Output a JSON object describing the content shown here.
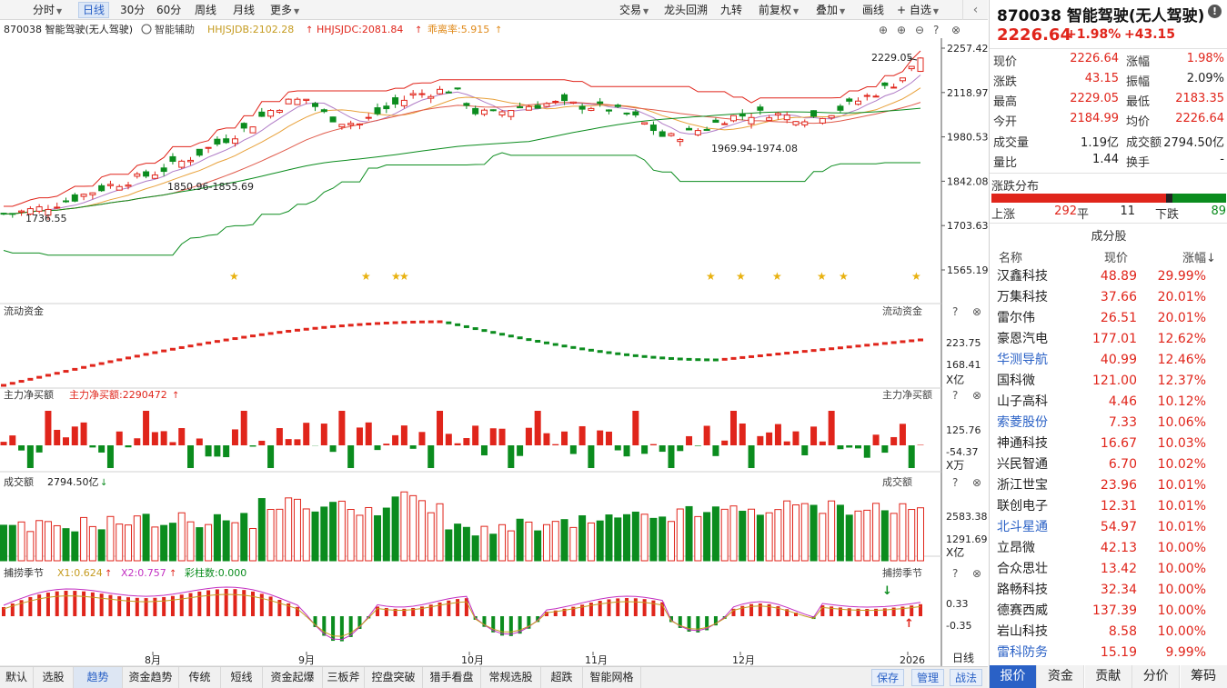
{
  "toolbar": {
    "left_tabs": [
      {
        "label": "分时",
        "caret": true
      },
      {
        "label": "日线",
        "active": true
      },
      {
        "label": "30分"
      },
      {
        "label": "60分"
      },
      {
        "label": "周线"
      },
      {
        "label": "月线"
      },
      {
        "label": "更多",
        "caret": true
      }
    ],
    "right_tabs": [
      {
        "label": "交易",
        "caret": true
      },
      {
        "label": "龙头回溯"
      },
      {
        "label": "九转"
      },
      {
        "label": "前复权",
        "caret": true
      },
      {
        "label": "叠加",
        "caret": true
      },
      {
        "label": "画线"
      },
      {
        "label": "+ 自选",
        "caret": true
      }
    ]
  },
  "main_chart": {
    "title": "870038 智能驾驶(无人驾驶)",
    "assist": "智能辅助",
    "ind1": "HHJSJDB:2102.28",
    "ind2": "HHJSJDC:2081.84",
    "ind3": "乖离率:5.915",
    "price_axis": [
      "2257.42",
      "2118.97",
      "1980.53",
      "1842.08",
      "1703.63",
      "1565.19"
    ],
    "annotations": {
      "high": "2229.05",
      "low1": "1736.55",
      "low2": "1850.96-1855.69",
      "low3": "1969.94-1974.08"
    }
  },
  "panel_flow": {
    "title": "流动资金",
    "right_title": "流动资金",
    "axis": [
      "223.75",
      "168.41"
    ],
    "unit": "X亿"
  },
  "panel_net": {
    "title": "主力净买额",
    "value": "主力净买额:2290472",
    "right_title": "主力净买额",
    "axis": [
      "125.76",
      "-54.37"
    ],
    "unit": "X万"
  },
  "panel_vol": {
    "title": "成交额",
    "value": "2794.50亿",
    "right_title": "成交额",
    "axis": [
      "2583.38",
      "1291.69"
    ],
    "unit": "X亿"
  },
  "panel_season": {
    "title": "捕捞季节",
    "x1": "X1:0.624",
    "x2": "X2:0.757",
    "cnt": "彩柱数:0.000",
    "right_title": "捕捞季节",
    "axis": [
      "0.33",
      "-0.35"
    ]
  },
  "x_axis": {
    "labels": [
      "8月",
      "9月",
      "10月",
      "11月",
      "12月",
      "2026"
    ],
    "period": "日线"
  },
  "bottom_tabs": [
    "默认",
    "选股",
    "趋势",
    "资金趋势",
    "传统",
    "短线",
    "资金起爆",
    "三板斧",
    "控盘突破",
    "猎手看盘",
    "常规选股",
    "超跌",
    "智能网格"
  ],
  "bottom_active": "趋势",
  "bottom_buttons": [
    "保存",
    "管理",
    "战法"
  ],
  "quote": {
    "code_name": "870038 智能驾驶(无人驾驶)",
    "price": "2226.64",
    "pct": "+1.98%",
    "chg": "+43.15",
    "rows": [
      {
        "l1": "现价",
        "v1": "2226.64",
        "c1": "red",
        "l2": "涨幅",
        "v2": "1.98%",
        "c2": "red"
      },
      {
        "l1": "涨跌",
        "v1": "43.15",
        "c1": "red",
        "l2": "振幅",
        "v2": "2.09%",
        "c2": "black"
      },
      {
        "l1": "最高",
        "v1": "2229.05",
        "c1": "red",
        "l2": "最低",
        "v2": "2183.35",
        "c2": "red"
      },
      {
        "l1": "今开",
        "v1": "2184.99",
        "c1": "red",
        "l2": "均价",
        "v2": "2226.64",
        "c2": "red"
      },
      {
        "l1": "成交量",
        "v1": "1.19亿",
        "c1": "black",
        "l2": "成交额",
        "v2": "2794.50亿",
        "c2": "black"
      },
      {
        "l1": "量比",
        "v1": "1.44",
        "c1": "black",
        "l2": "换手",
        "v2": "-",
        "c2": "black"
      }
    ]
  },
  "dist": {
    "title": "涨跌分布",
    "up_label": "上涨",
    "up": 292,
    "flat_label": "平",
    "flat": 11,
    "down_label": "下跌",
    "down": 89
  },
  "constituents": {
    "title": "成分股",
    "headers": {
      "name": "名称",
      "price": "现价",
      "chg": "涨幅↓"
    },
    "rows": [
      {
        "name": "汉鑫科技",
        "price": "48.89",
        "chg": "29.99%",
        "blue": false
      },
      {
        "name": "万集科技",
        "price": "37.66",
        "chg": "20.01%",
        "blue": false
      },
      {
        "name": "雷尔伟",
        "price": "26.51",
        "chg": "20.01%",
        "blue": false
      },
      {
        "name": "豪恩汽电",
        "price": "177.01",
        "chg": "12.62%",
        "blue": false
      },
      {
        "name": "华测导航",
        "price": "40.99",
        "chg": "12.46%",
        "blue": true
      },
      {
        "name": "国科微",
        "price": "121.00",
        "chg": "12.37%",
        "blue": false
      },
      {
        "name": "山子高科",
        "price": "4.46",
        "chg": "10.12%",
        "blue": false
      },
      {
        "name": "索菱股份",
        "price": "7.33",
        "chg": "10.06%",
        "blue": true
      },
      {
        "name": "神通科技",
        "price": "16.67",
        "chg": "10.03%",
        "blue": false
      },
      {
        "name": "兴民智通",
        "price": "6.70",
        "chg": "10.02%",
        "blue": false
      },
      {
        "name": "浙江世宝",
        "price": "23.96",
        "chg": "10.01%",
        "blue": false
      },
      {
        "name": "联创电子",
        "price": "12.31",
        "chg": "10.01%",
        "blue": false
      },
      {
        "name": "北斗星通",
        "price": "54.97",
        "chg": "10.01%",
        "blue": true
      },
      {
        "name": "立昂微",
        "price": "42.13",
        "chg": "10.00%",
        "blue": false
      },
      {
        "name": "合众思壮",
        "price": "13.42",
        "chg": "10.00%",
        "blue": false
      },
      {
        "name": "路畅科技",
        "price": "32.34",
        "chg": "10.00%",
        "blue": false
      },
      {
        "name": "德赛西威",
        "price": "137.39",
        "chg": "10.00%",
        "blue": false
      },
      {
        "name": "岩山科技",
        "price": "8.58",
        "chg": "10.00%",
        "blue": false
      },
      {
        "name": "雷科防务",
        "price": "15.19",
        "chg": "9.99%",
        "blue": true
      }
    ]
  },
  "right_tabs": [
    "报价",
    "资金",
    "贡献",
    "分价",
    "筹码"
  ],
  "right_active": "报价"
}
